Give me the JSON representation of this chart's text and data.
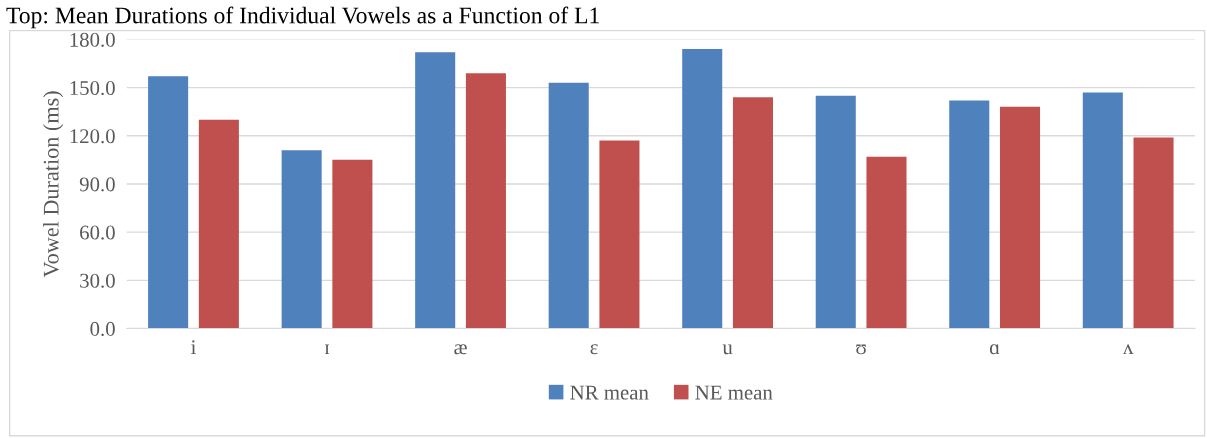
{
  "chart_data": {
    "type": "bar",
    "title": "Top: Mean Durations of Individual Vowels as a Function of L1",
    "ylabel": "Vowel Duration (ms)",
    "categories": [
      "i",
      "ɪ",
      "æ",
      "ɛ",
      "u",
      "ʊ",
      "ɑ",
      "ʌ"
    ],
    "series": [
      {
        "name": "NR mean",
        "color": "#4f81bd",
        "values": [
          157,
          111,
          172,
          153,
          174,
          145,
          142,
          147
        ]
      },
      {
        "name": "NE mean",
        "color": "#c0504d",
        "values": [
          130,
          105,
          159,
          117,
          144,
          107,
          138,
          119
        ]
      }
    ],
    "ylim": [
      0,
      180
    ],
    "yticks": [
      {
        "value": 0,
        "label": "0.0"
      },
      {
        "value": 30,
        "label": "30.0"
      },
      {
        "value": 60,
        "label": "60.0"
      },
      {
        "value": 90,
        "label": "90.0"
      },
      {
        "value": 120,
        "label": "120.0"
      },
      {
        "value": 150,
        "label": "150.0"
      },
      {
        "value": 180,
        "label": "180.0"
      }
    ],
    "grid": "y",
    "legend": "bottom"
  }
}
